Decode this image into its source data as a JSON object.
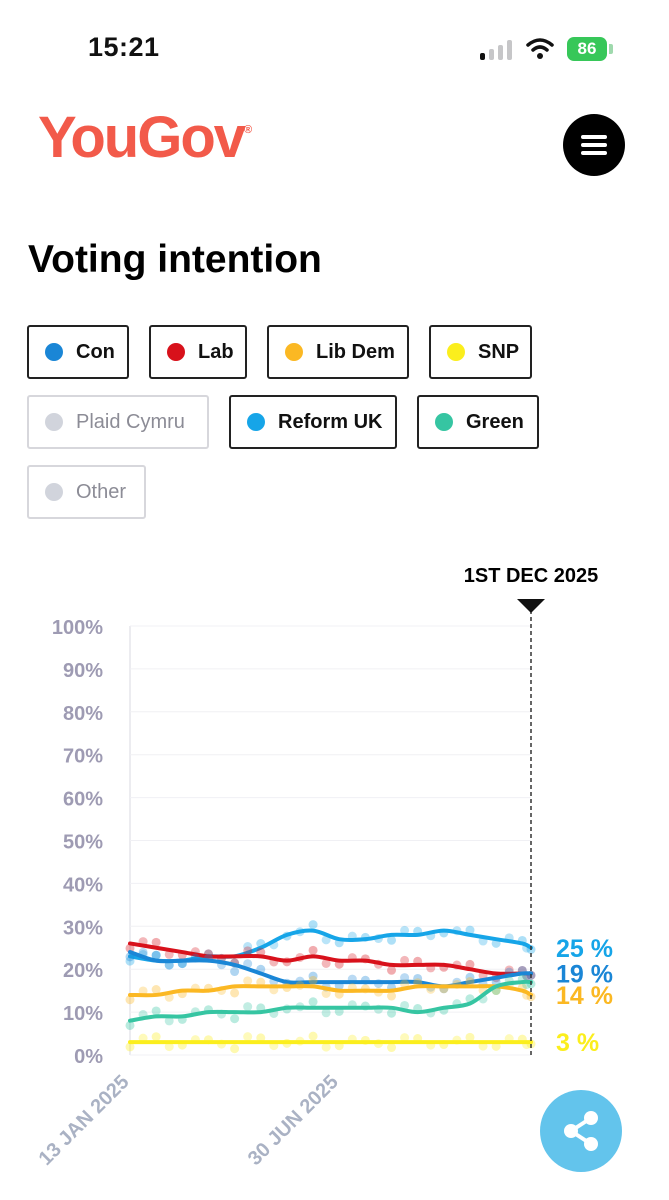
{
  "status_bar": {
    "time": "15:21",
    "battery": "86"
  },
  "header": {
    "logo": "YouGov",
    "logo_mark": "®"
  },
  "page_title": "Voting intention",
  "filters": [
    {
      "label": "Con",
      "color": "#1a86d6",
      "active": true
    },
    {
      "label": "Lab",
      "color": "#d8111b",
      "active": true
    },
    {
      "label": "Lib Dem",
      "color": "#fbb823",
      "active": true
    },
    {
      "label": "SNP",
      "color": "#fbee1d",
      "active": true
    },
    {
      "label": "Plaid Cymru",
      "color": "#d1d4dc",
      "active": false
    },
    {
      "label": "Reform UK",
      "color": "#16a5e8",
      "active": true
    },
    {
      "label": "Green",
      "color": "#36c5a2",
      "active": true
    },
    {
      "label": "Other",
      "color": "#d1d4dc",
      "active": false
    }
  ],
  "chart_data": {
    "type": "line",
    "marker_label": "1ST DEC 2025",
    "x_ticks": [
      "13 JAN 2025",
      "30 JUN 2025"
    ],
    "y_ticks": [
      "0%",
      "10%",
      "20%",
      "30%",
      "40%",
      "50%",
      "60%",
      "70%",
      "80%",
      "90%",
      "100%"
    ],
    "ylim": [
      0,
      100
    ],
    "x": [
      "2025-01-13",
      "2025-02-03",
      "2025-02-24",
      "2025-03-17",
      "2025-04-07",
      "2025-04-28",
      "2025-05-19",
      "2025-06-09",
      "2025-06-30",
      "2025-07-21",
      "2025-08-11",
      "2025-09-01",
      "2025-09-22",
      "2025-10-13",
      "2025-11-03",
      "2025-11-24",
      "2025-12-01"
    ],
    "series": [
      {
        "name": "Reform UK",
        "color": "#16a5e8",
        "label": "25 %",
        "values": [
          23,
          22,
          22,
          23,
          23,
          25,
          28,
          29,
          27,
          27,
          28,
          28,
          29,
          28,
          27,
          26,
          25
        ]
      },
      {
        "name": "Lab",
        "color": "#d8111b",
        "label": "",
        "values": [
          26,
          25,
          24,
          23,
          23,
          23,
          22,
          23,
          22,
          22,
          21,
          21,
          21,
          20,
          19,
          19,
          19
        ]
      },
      {
        "name": "Con",
        "color": "#1a86d6",
        "label": "19 %",
        "values": [
          24,
          22,
          22,
          22,
          21,
          19,
          17,
          17,
          17,
          17,
          17,
          17,
          16,
          17,
          18,
          19,
          19
        ]
      },
      {
        "name": "Lib Dem",
        "color": "#fbb823",
        "label": "14 %",
        "values": [
          14,
          14,
          15,
          15,
          16,
          16,
          16,
          16,
          15,
          15,
          15,
          16,
          16,
          16,
          16,
          15,
          14
        ]
      },
      {
        "name": "Green",
        "color": "#36c5a2",
        "label": "",
        "values": [
          8,
          9,
          9,
          10,
          10,
          10,
          11,
          11,
          11,
          11,
          11,
          10,
          11,
          12,
          16,
          17,
          17
        ]
      },
      {
        "name": "SNP",
        "color": "#fbee1d",
        "label": "3 %",
        "values": [
          3,
          3,
          3,
          3,
          3,
          3,
          3,
          3,
          3,
          3,
          3,
          3,
          3,
          3,
          3,
          3,
          3
        ]
      }
    ]
  }
}
